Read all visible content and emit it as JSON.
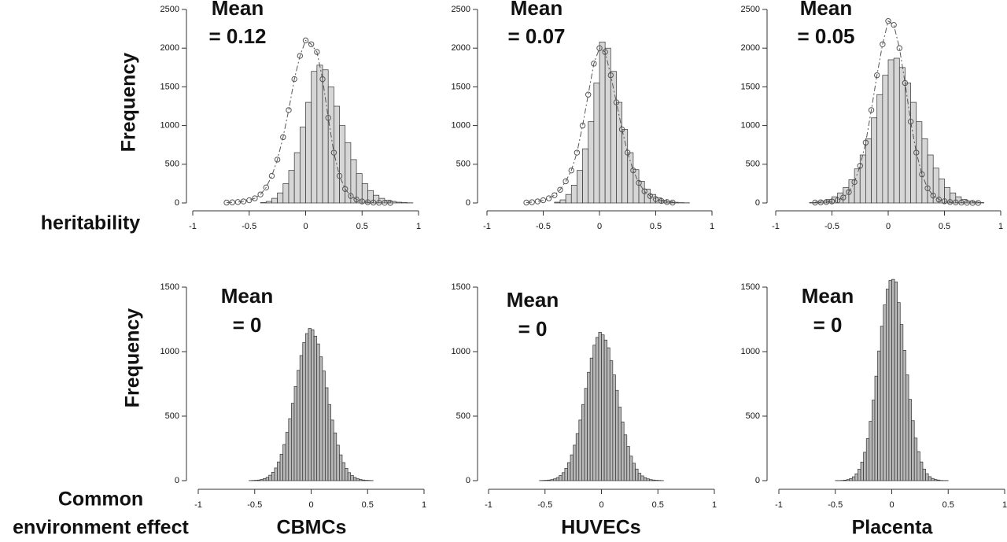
{
  "chart_data": [
    {
      "type": "histogram",
      "color": "#d6d6d6",
      "y_label": "Frequency",
      "row_label": [
        "heritability"
      ],
      "annotation": [
        "Mean",
        "= 0.12"
      ],
      "bins": [
        -0.4,
        -0.35,
        -0.3,
        -0.25,
        -0.2,
        -0.15,
        -0.1,
        -0.05,
        0,
        0.05,
        0.1,
        0.15,
        0.2,
        0.25,
        0.3,
        0.35,
        0.4,
        0.45,
        0.5,
        0.55,
        0.6,
        0.65,
        0.7,
        0.75,
        0.8,
        0.85,
        0.9,
        0.95
      ],
      "counts": [
        5,
        20,
        60,
        130,
        250,
        420,
        650,
        980,
        1300,
        1700,
        1780,
        1720,
        1500,
        1250,
        1000,
        780,
        560,
        380,
        250,
        160,
        100,
        60,
        35,
        20,
        10,
        5,
        2
      ],
      "overlay": {
        "color": "#555555",
        "x": [
          -0.7,
          -0.65,
          -0.6,
          -0.55,
          -0.5,
          -0.45,
          -0.4,
          -0.35,
          -0.3,
          -0.25,
          -0.2,
          -0.15,
          -0.1,
          -0.05,
          0,
          0.05,
          0.1,
          0.15,
          0.2,
          0.25,
          0.3,
          0.35,
          0.4,
          0.45,
          0.5,
          0.55,
          0.6,
          0.65,
          0.7,
          0.75
        ],
        "values": [
          5,
          8,
          12,
          20,
          35,
          60,
          110,
          200,
          350,
          560,
          850,
          1200,
          1600,
          1900,
          2100,
          2050,
          1950,
          1600,
          1100,
          650,
          350,
          180,
          90,
          45,
          20,
          10,
          5,
          3,
          2,
          1
        ]
      },
      "xlim": [
        -1,
        1
      ],
      "xticks": [
        -1,
        -0.5,
        0,
        0.5,
        1
      ],
      "ylim": [
        0,
        2500
      ],
      "yticks": [
        0,
        500,
        1000,
        1500,
        2000,
        2500
      ]
    },
    {
      "type": "histogram",
      "color": "#d6d6d6",
      "annotation": [
        "Mean",
        "= 0.07"
      ],
      "bins": [
        -0.4,
        -0.35,
        -0.3,
        -0.25,
        -0.2,
        -0.15,
        -0.1,
        -0.05,
        0,
        0.05,
        0.1,
        0.15,
        0.2,
        0.25,
        0.3,
        0.35,
        0.4,
        0.45,
        0.5,
        0.55,
        0.6,
        0.65,
        0.7,
        0.75,
        0.8
      ],
      "counts": [
        10,
        40,
        110,
        230,
        420,
        700,
        1050,
        1550,
        2080,
        2000,
        1700,
        1300,
        950,
        650,
        430,
        280,
        180,
        110,
        65,
        35,
        18,
        9,
        4,
        2
      ],
      "overlay": {
        "color": "#555555",
        "x": [
          -0.65,
          -0.6,
          -0.55,
          -0.5,
          -0.45,
          -0.4,
          -0.35,
          -0.3,
          -0.25,
          -0.2,
          -0.15,
          -0.1,
          -0.05,
          0,
          0.05,
          0.1,
          0.15,
          0.2,
          0.25,
          0.3,
          0.35,
          0.4,
          0.45,
          0.5,
          0.55,
          0.6,
          0.65
        ],
        "values": [
          5,
          10,
          20,
          35,
          60,
          100,
          170,
          280,
          420,
          650,
          1000,
          1400,
          1800,
          2000,
          1950,
          1650,
          1300,
          950,
          650,
          420,
          260,
          150,
          90,
          50,
          25,
          12,
          5
        ]
      },
      "xlim": [
        -1,
        1
      ],
      "xticks": [
        -1,
        -0.5,
        0,
        0.5,
        1
      ],
      "ylim": [
        0,
        2500
      ],
      "yticks": [
        0,
        500,
        1000,
        1500,
        2000,
        2500
      ]
    },
    {
      "type": "histogram",
      "color": "#d6d6d6",
      "annotation": [
        "Mean",
        "= 0.05"
      ],
      "bins": [
        -0.7,
        -0.65,
        -0.6,
        -0.55,
        -0.5,
        -0.45,
        -0.4,
        -0.35,
        -0.3,
        -0.25,
        -0.2,
        -0.15,
        -0.1,
        -0.05,
        0,
        0.05,
        0.1,
        0.15,
        0.2,
        0.25,
        0.3,
        0.35,
        0.4,
        0.45,
        0.5,
        0.55,
        0.6,
        0.65,
        0.7,
        0.75,
        0.8,
        0.85
      ],
      "counts": [
        5,
        12,
        25,
        45,
        80,
        130,
        200,
        300,
        440,
        620,
        830,
        1100,
        1400,
        1650,
        1850,
        1870,
        1750,
        1550,
        1300,
        1050,
        830,
        620,
        450,
        310,
        200,
        130,
        80,
        45,
        25,
        12,
        5
      ],
      "overlay": {
        "color": "#555555",
        "x": [
          -0.65,
          -0.6,
          -0.55,
          -0.5,
          -0.45,
          -0.4,
          -0.35,
          -0.3,
          -0.25,
          -0.2,
          -0.15,
          -0.1,
          -0.05,
          0,
          0.05,
          0.1,
          0.15,
          0.2,
          0.25,
          0.3,
          0.35,
          0.4,
          0.45,
          0.5,
          0.55,
          0.6,
          0.65,
          0.7,
          0.75,
          0.8
        ],
        "values": [
          5,
          8,
          12,
          20,
          35,
          70,
          140,
          270,
          480,
          780,
          1200,
          1650,
          2050,
          2350,
          2300,
          2000,
          1550,
          1050,
          650,
          370,
          190,
          95,
          45,
          22,
          12,
          7,
          4,
          2,
          1,
          1
        ]
      },
      "xlim": [
        -1,
        1
      ],
      "xticks": [
        -1,
        -0.5,
        0,
        0.5,
        1
      ],
      "ylim": [
        0,
        2500
      ],
      "yticks": [
        0,
        500,
        1000,
        1500,
        2000,
        2500
      ]
    },
    {
      "type": "histogram",
      "color": "#b8b8b8",
      "y_label": "Frequency",
      "row_label": [
        "Common",
        "environment effect"
      ],
      "x_label": "CBMCs",
      "annotation": [
        "Mean",
        "= 0"
      ],
      "bins": [
        -0.55,
        -0.525,
        -0.5,
        -0.475,
        -0.45,
        -0.425,
        -0.4,
        -0.375,
        -0.35,
        -0.325,
        -0.3,
        -0.275,
        -0.25,
        -0.225,
        -0.2,
        -0.175,
        -0.15,
        -0.125,
        -0.1,
        -0.075,
        -0.05,
        -0.025,
        0,
        0.025,
        0.05,
        0.075,
        0.1,
        0.125,
        0.15,
        0.175,
        0.2,
        0.225,
        0.25,
        0.275,
        0.3,
        0.325,
        0.35,
        0.375,
        0.4,
        0.425,
        0.45,
        0.475,
        0.5,
        0.525,
        0.55
      ],
      "counts": [
        1,
        2,
        3,
        5,
        9,
        16,
        26,
        42,
        65,
        98,
        145,
        205,
        280,
        375,
        480,
        600,
        730,
        855,
        970,
        1070,
        1140,
        1180,
        1170,
        1120,
        1060,
        960,
        850,
        720,
        590,
        470,
        370,
        275,
        200,
        140,
        95,
        62,
        40,
        25,
        15,
        9,
        5,
        3,
        2,
        1
      ],
      "xlim": [
        -1,
        1
      ],
      "xticks": [
        -1,
        -0.5,
        0,
        0.5,
        1
      ],
      "ylim": [
        0,
        1500
      ],
      "yticks": [
        0,
        500,
        1000,
        1500
      ]
    },
    {
      "type": "histogram",
      "color": "#b8b8b8",
      "x_label": "HUVECs",
      "annotation": [
        "Mean",
        "= 0"
      ],
      "bins": [
        -0.55,
        -0.525,
        -0.5,
        -0.475,
        -0.45,
        -0.425,
        -0.4,
        -0.375,
        -0.35,
        -0.325,
        -0.3,
        -0.275,
        -0.25,
        -0.225,
        -0.2,
        -0.175,
        -0.15,
        -0.125,
        -0.1,
        -0.075,
        -0.05,
        -0.025,
        0,
        0.025,
        0.05,
        0.075,
        0.1,
        0.125,
        0.15,
        0.175,
        0.2,
        0.225,
        0.25,
        0.275,
        0.3,
        0.325,
        0.35,
        0.375,
        0.4,
        0.425,
        0.45,
        0.475,
        0.5,
        0.525,
        0.55
      ],
      "counts": [
        1,
        2,
        3,
        5,
        8,
        14,
        24,
        40,
        62,
        95,
        140,
        200,
        275,
        365,
        470,
        590,
        715,
        840,
        950,
        1050,
        1110,
        1150,
        1130,
        1090,
        1030,
        930,
        820,
        700,
        570,
        455,
        355,
        265,
        190,
        135,
        90,
        58,
        37,
        23,
        14,
        8,
        5,
        3,
        2,
        1
      ],
      "xlim": [
        -1,
        1
      ],
      "xticks": [
        -1,
        -0.5,
        0,
        0.5,
        1
      ],
      "ylim": [
        0,
        1500
      ],
      "yticks": [
        0,
        500,
        1000,
        1500
      ]
    },
    {
      "type": "histogram",
      "color": "#b8b8b8",
      "x_label": "Placenta",
      "annotation": [
        "Mean",
        "= 0"
      ],
      "bins": [
        -0.55,
        -0.525,
        -0.5,
        -0.475,
        -0.45,
        -0.425,
        -0.4,
        -0.375,
        -0.35,
        -0.325,
        -0.3,
        -0.275,
        -0.25,
        -0.225,
        -0.2,
        -0.175,
        -0.15,
        -0.125,
        -0.1,
        -0.075,
        -0.05,
        -0.025,
        0,
        0.025,
        0.05,
        0.075,
        0.1,
        0.125,
        0.15,
        0.175,
        0.2,
        0.225,
        0.25,
        0.275,
        0.3,
        0.325,
        0.35,
        0.375,
        0.4,
        0.425,
        0.45,
        0.475,
        0.5,
        0.525,
        0.55
      ],
      "counts": [
        0,
        0,
        1,
        1,
        2,
        4,
        8,
        16,
        30,
        53,
        89,
        144,
        220,
        326,
        460,
        624,
        810,
        1005,
        1197,
        1362,
        1485,
        1552,
        1560,
        1540,
        1380,
        1210,
        1010,
        820,
        630,
        465,
        330,
        225,
        145,
        90,
        54,
        31,
        17,
        9,
        5,
        2,
        1,
        1,
        0,
        0
      ],
      "xlim": [
        -1,
        1
      ],
      "xticks": [
        -1,
        -0.5,
        0,
        0.5,
        1
      ],
      "ylim": [
        0,
        1500
      ],
      "yticks": [
        0,
        500,
        1000,
        1500
      ]
    }
  ]
}
